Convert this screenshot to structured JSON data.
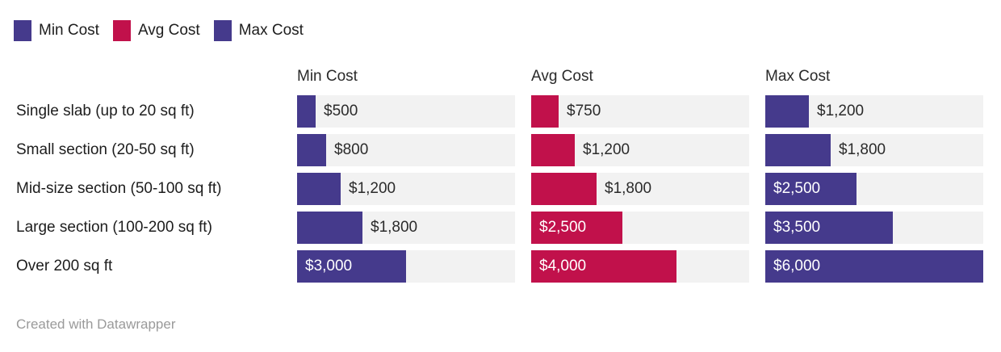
{
  "legend": {
    "items": [
      {
        "label": "Min Cost",
        "color": "#453a8c"
      },
      {
        "label": "Avg Cost",
        "color": "#c1114b"
      },
      {
        "label": "Max Cost",
        "color": "#453a8c"
      }
    ]
  },
  "chart_data": {
    "type": "bar",
    "variant": "split-bars-horizontal",
    "title": "",
    "categories": [
      "Single slab (up to 20 sq ft)",
      "Small section (20-50 sq ft)",
      "Mid-size section (50-100 sq ft)",
      "Large section (100-200 sq ft)",
      "Over 200 sq ft"
    ],
    "series": [
      {
        "name": "Min Cost",
        "color": "#453a8c",
        "values": [
          500,
          800,
          1200,
          1800,
          3000
        ],
        "labels": [
          "$500",
          "$800",
          "$1,200",
          "$1,800",
          "$3,000"
        ]
      },
      {
        "name": "Avg Cost",
        "color": "#c1114b",
        "values": [
          750,
          1200,
          1800,
          2500,
          4000
        ],
        "labels": [
          "$750",
          "$1,200",
          "$1,800",
          "$2,500",
          "$4,000"
        ]
      },
      {
        "name": "Max Cost",
        "color": "#453a8c",
        "values": [
          1200,
          1800,
          2500,
          3500,
          6000
        ],
        "labels": [
          "$1,200",
          "$1,800",
          "$2,500",
          "$3,500",
          "$6,000"
        ]
      }
    ],
    "xlim": [
      0,
      6000
    ],
    "grid": false,
    "legend_position": "top-left",
    "track_color": "#f2f2f2"
  },
  "footer": {
    "credit": "Created with Datawrapper"
  }
}
